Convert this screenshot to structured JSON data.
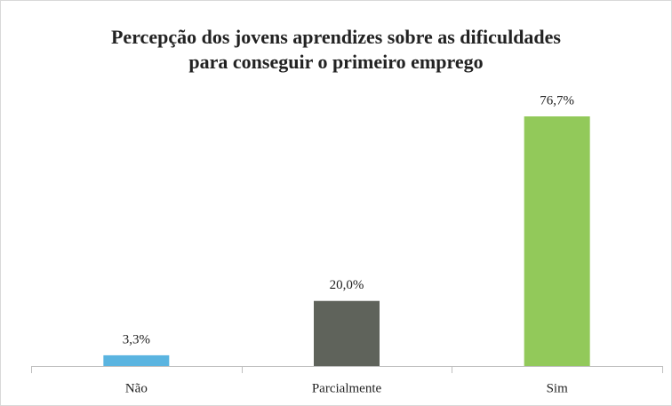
{
  "chart_data": {
    "type": "bar",
    "title": [
      "Percepção dos jovens aprendizes sobre as dificuldades",
      "para conseguir o primeiro emprego"
    ],
    "categories": [
      "Não",
      "Parcialmente",
      "Sim"
    ],
    "values": [
      3.3,
      20.0,
      76.7
    ],
    "value_labels": [
      "3,3%",
      "20,0%",
      "76,7%"
    ],
    "colors": [
      "#5ab4e0",
      "#5f635b",
      "#92c95a"
    ]
  }
}
